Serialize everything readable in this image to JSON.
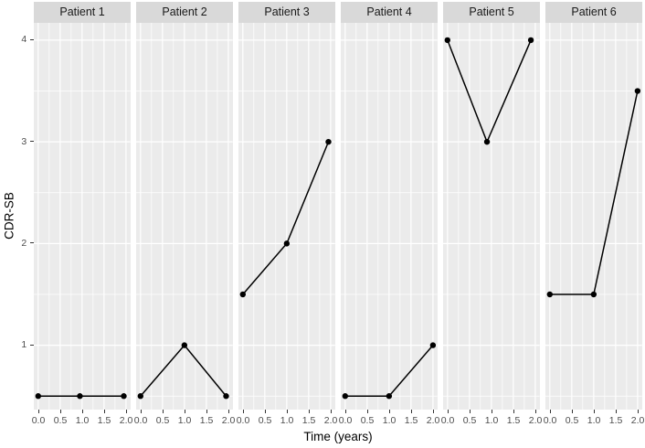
{
  "chart_data": {
    "type": "line",
    "title": "",
    "xlabel": "Time (years)",
    "ylabel": "CDR-SB",
    "facet_variable": "Patient",
    "legend": "none",
    "grid": true,
    "x_range": [
      -0.1,
      2.1
    ],
    "y_range": [
      0.36,
      4.17
    ],
    "x_ticks": {
      "values": [
        0,
        0.5,
        1,
        1.5,
        2
      ],
      "labels": [
        "0.0",
        "0.5",
        "1.0",
        "1.5",
        "2.0"
      ]
    },
    "x_minor": [
      0.25,
      0.75,
      1.25,
      1.75
    ],
    "y_ticks": {
      "values": [
        1,
        2,
        3,
        4
      ],
      "labels": [
        "1",
        "2",
        "3",
        "4"
      ]
    },
    "y_minor": [
      0.5,
      1.5,
      2.5,
      3.5
    ],
    "facets": [
      {
        "label": "Patient 1",
        "x": [
          0,
          0.95,
          1.95
        ],
        "y": [
          0.5,
          0.5,
          0.5
        ]
      },
      {
        "label": "Patient 2",
        "x": [
          0,
          1.0,
          1.95
        ],
        "y": [
          0.5,
          1.0,
          0.5
        ]
      },
      {
        "label": "Patient 3",
        "x": [
          0,
          1.0,
          1.95
        ],
        "y": [
          1.5,
          2.0,
          3.0
        ]
      },
      {
        "label": "Patient 4",
        "x": [
          0,
          1.0,
          2.0
        ],
        "y": [
          0.5,
          0.5,
          1.0
        ]
      },
      {
        "label": "Patient 5",
        "x": [
          0,
          0.9,
          1.9
        ],
        "y": [
          4.0,
          3.0,
          4.0
        ]
      },
      {
        "label": "Patient 6",
        "x": [
          0,
          1.0,
          2.0
        ],
        "y": [
          1.5,
          1.5,
          3.5
        ]
      }
    ],
    "colors": {
      "background": "#FFFFFF",
      "panel_bg": "#EBEBEB",
      "strip_bg": "#D9D9D9",
      "grid": "#FFFFFF",
      "line": "#000000",
      "point": "#000000",
      "tick_text": "#4D4D4D",
      "strip_text": "#1A1A1A",
      "axis_title": "#000000",
      "tick_mark": "#333333"
    }
  }
}
